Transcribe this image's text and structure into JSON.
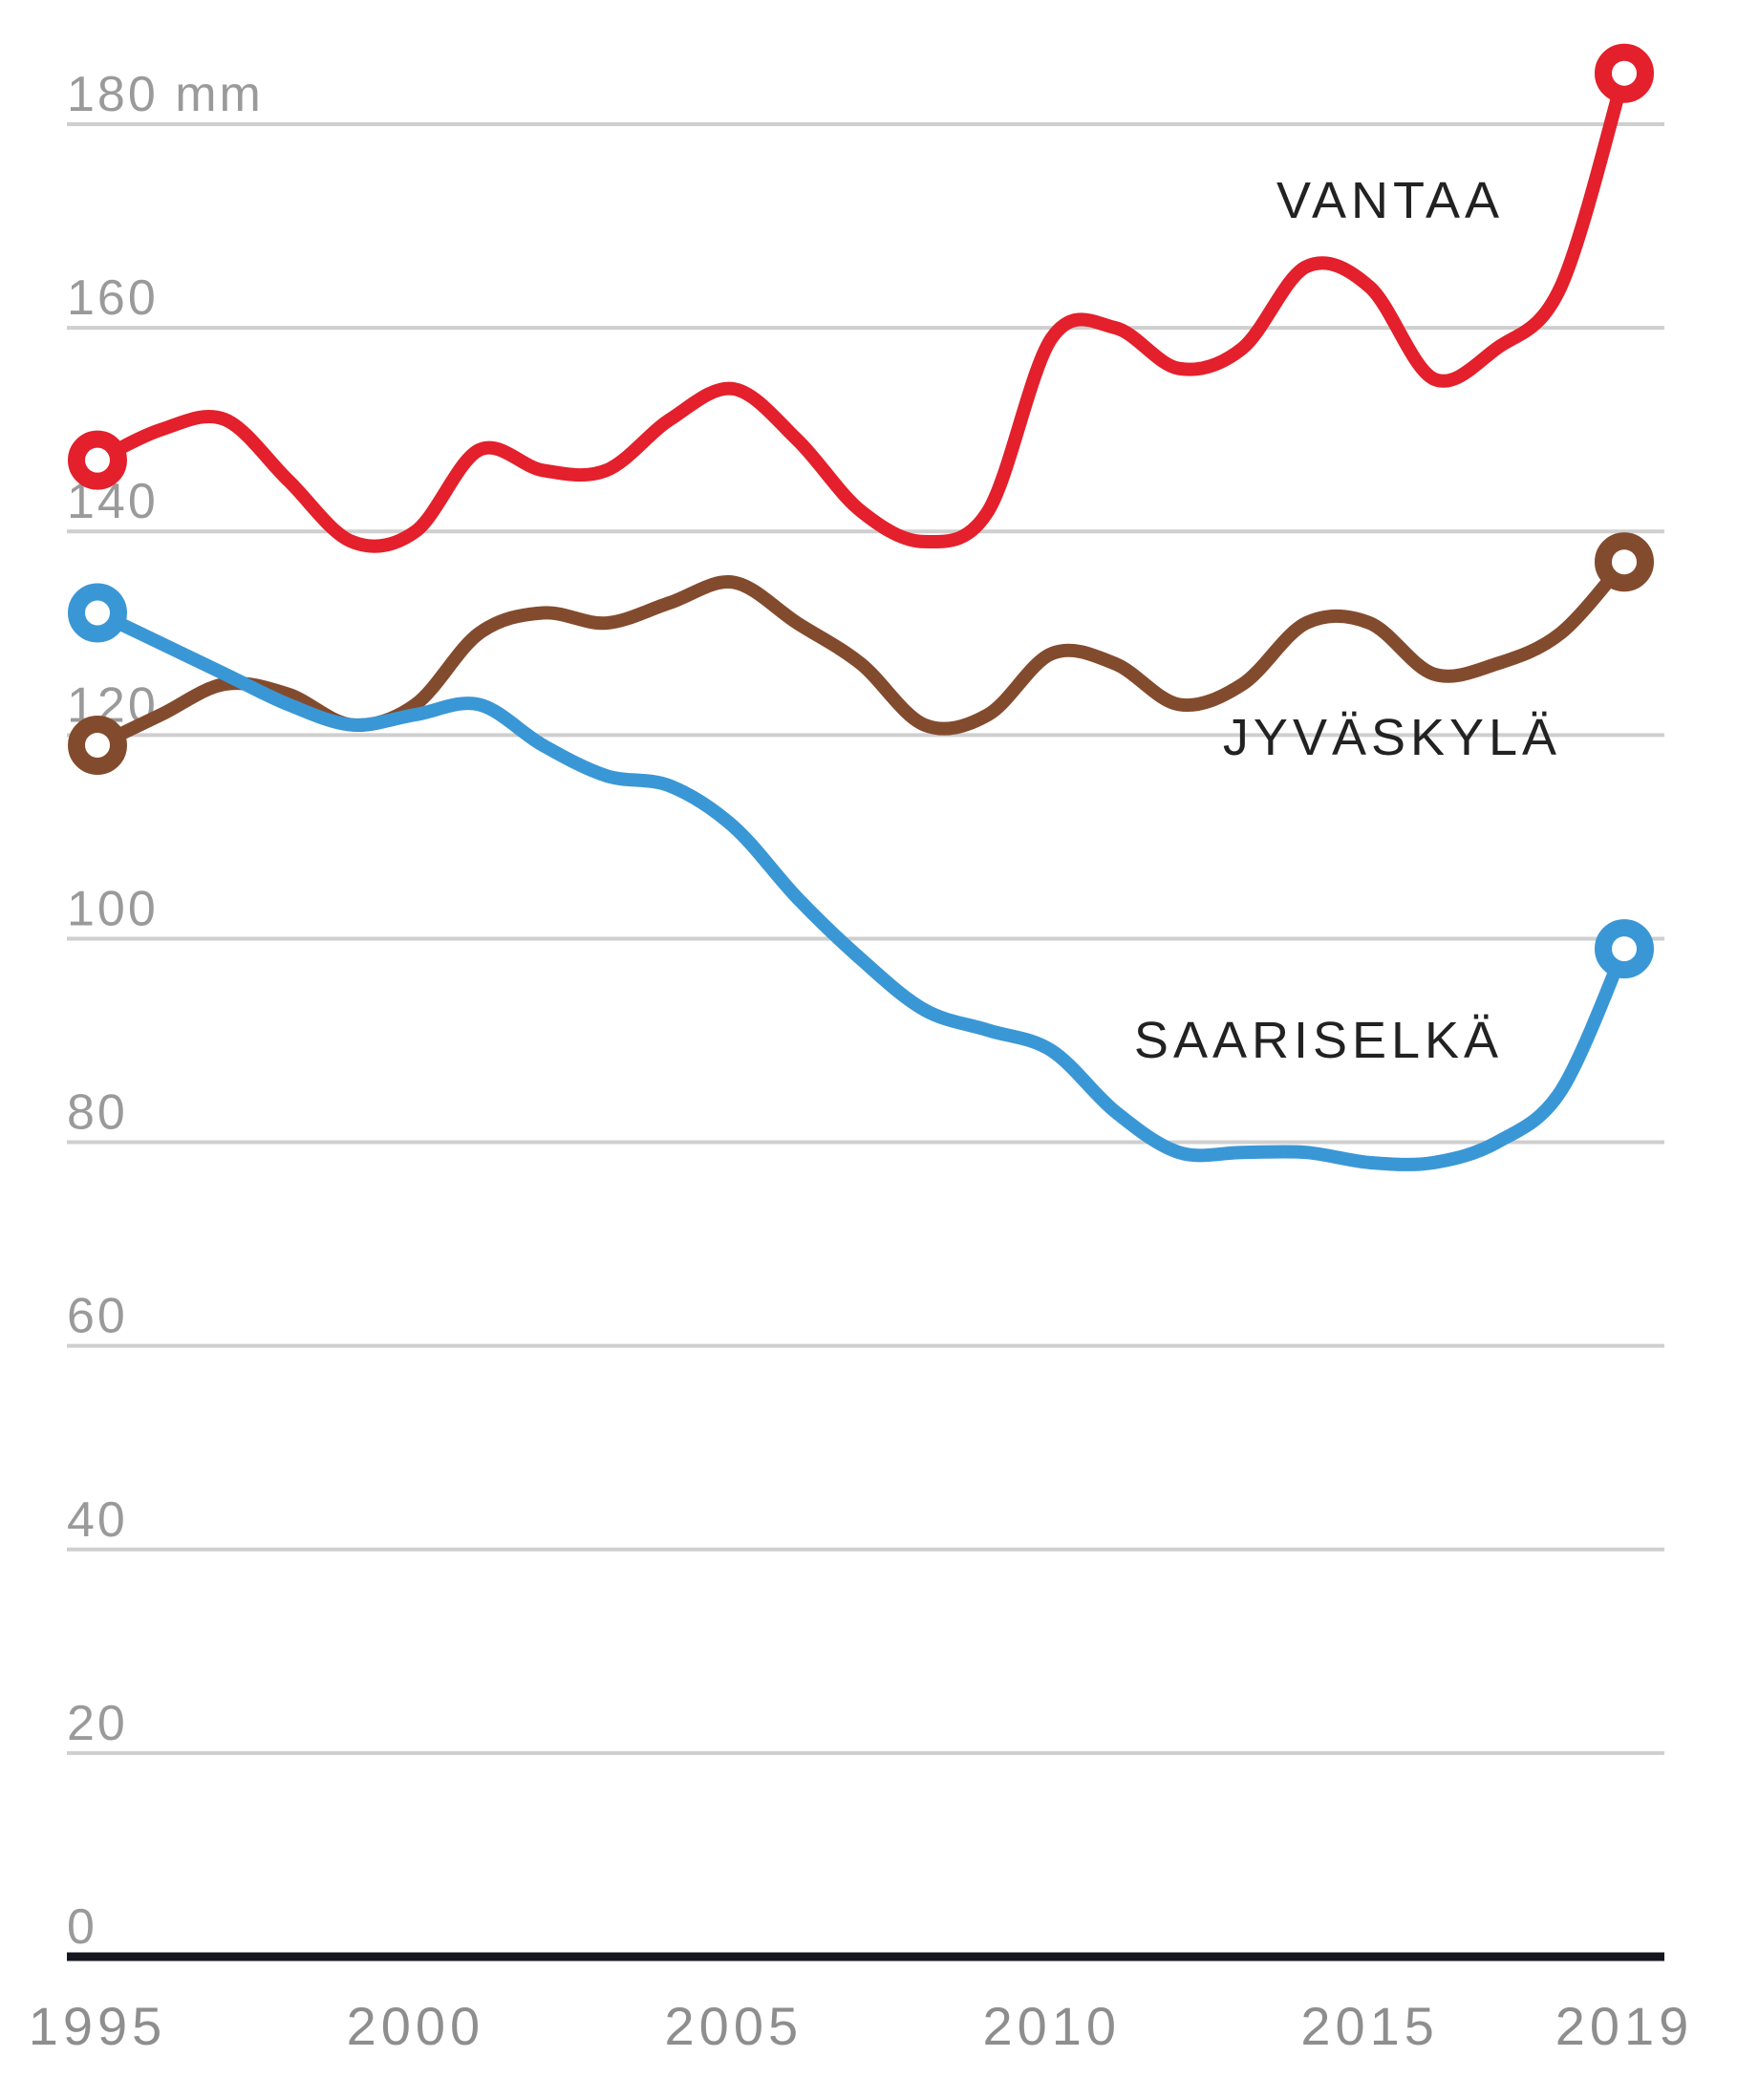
{
  "chart_data": {
    "type": "line",
    "x": [
      1995,
      1996,
      1997,
      1998,
      1999,
      2000,
      2001,
      2002,
      2003,
      2004,
      2005,
      2006,
      2007,
      2008,
      2009,
      2010,
      2011,
      2012,
      2013,
      2014,
      2015,
      2016,
      2017,
      2018,
      2019
    ],
    "series": [
      {
        "name": "VANTAA",
        "color": "#e3202b",
        "values": [
          147,
          150,
          151,
          145,
          139,
          140,
          148,
          146,
          146,
          151,
          154,
          149,
          142,
          139,
          142,
          159,
          160,
          156,
          158,
          166,
          164,
          155,
          158,
          164,
          185
        ]
      },
      {
        "name": "JYVÄSKYLÄ",
        "color": "#834b2e",
        "values": [
          119,
          122,
          125,
          124,
          121,
          123,
          130,
          132,
          131,
          133,
          135,
          131,
          127,
          121,
          122,
          128,
          127,
          123,
          125,
          131,
          131,
          126,
          127,
          130,
          137
        ]
      },
      {
        "name": "SAARISELKÄ",
        "color": "#3a97d6",
        "values": [
          132,
          129,
          126,
          123,
          121,
          122,
          123,
          119,
          116,
          115,
          111,
          104,
          98,
          93,
          91,
          89,
          83,
          79,
          79,
          79,
          78,
          78,
          80,
          85,
          99
        ]
      }
    ],
    "ylim": [
      0,
      185
    ],
    "yticks": [
      "0",
      "20",
      "40",
      "60",
      "80",
      "100",
      "120",
      "140",
      "160",
      "180 mm"
    ],
    "xticks": [
      "1995",
      "2000",
      "2005",
      "2010",
      "2015",
      "2019"
    ],
    "grid": true,
    "legend": "inline labels"
  }
}
